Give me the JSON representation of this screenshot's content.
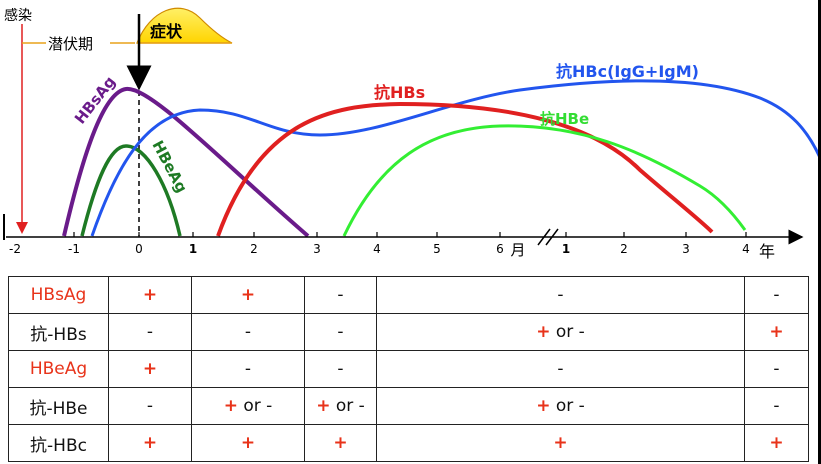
{
  "chart_data": {
    "type": "line",
    "timeline_labels": {
      "infection": "感染",
      "incubation": "潜伏期",
      "symptoms": "症状"
    },
    "x_ticks_months": [
      "-2",
      "-1",
      "0",
      "1",
      "2",
      "3",
      "4",
      "5",
      "6"
    ],
    "x_month_unit": "月",
    "x_ticks_years": [
      "1",
      "2",
      "3",
      "4"
    ],
    "x_year_unit": "年",
    "series": [
      {
        "name": "HBsAg",
        "color": "#6a1b8a"
      },
      {
        "name": "HBeAg",
        "color": "#1e7a24"
      },
      {
        "name": "抗HBs",
        "color": "#e02020"
      },
      {
        "name": "抗HBe",
        "color": "#33ee33"
      },
      {
        "name": "抗HBc(IgG+IgM)",
        "color": "#2255ee"
      }
    ]
  },
  "table": {
    "rows": [
      {
        "label": "HBsAg",
        "label_red": true,
        "cells": [
          "+",
          "+",
          "-",
          "-",
          "-"
        ]
      },
      {
        "label": "抗-HBs",
        "label_red": false,
        "cells": [
          "-",
          "-",
          "-",
          "+ or -",
          "+"
        ]
      },
      {
        "label": "HBeAg",
        "label_red": true,
        "cells": [
          "+",
          "-",
          "-",
          "-",
          "-"
        ]
      },
      {
        "label": "抗-HBe",
        "label_red": false,
        "cells": [
          "-",
          "+ or -",
          "+ or -",
          "+ or -",
          "-"
        ]
      },
      {
        "label": "抗-HBc",
        "label_red": false,
        "cells": [
          "+",
          "+",
          "+",
          "+",
          "+"
        ]
      }
    ]
  },
  "colors": {
    "positive": "#e8331a",
    "symptom_fill": "#ffee00"
  }
}
